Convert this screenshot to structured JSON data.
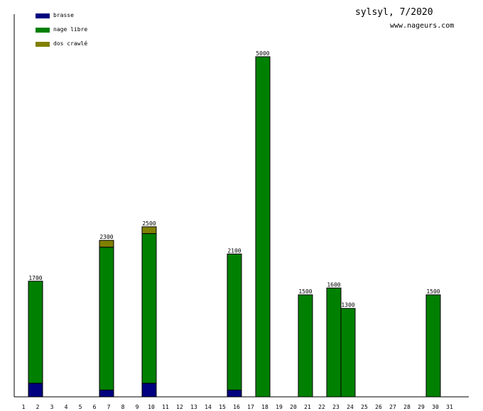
{
  "chart_data": {
    "type": "bar",
    "stacked": true,
    "title": "sylsyl, 7/2020",
    "subtitle": "www.nageurs.com",
    "xlabel": "",
    "ylabel": "",
    "ylim": [
      0,
      5000
    ],
    "grid": false,
    "legend_position": "top-left",
    "categories": [
      "1",
      "2",
      "3",
      "4",
      "5",
      "6",
      "7",
      "8",
      "9",
      "10",
      "11",
      "12",
      "13",
      "14",
      "15",
      "16",
      "17",
      "18",
      "19",
      "20",
      "21",
      "22",
      "23",
      "24",
      "25",
      "26",
      "27",
      "28",
      "29",
      "30",
      "31"
    ],
    "series": [
      {
        "name": "brasse",
        "color": "#000080",
        "values": [
          0,
          200,
          0,
          0,
          0,
          0,
          100,
          0,
          0,
          200,
          0,
          0,
          0,
          0,
          0,
          100,
          0,
          0,
          0,
          0,
          0,
          0,
          0,
          0,
          0,
          0,
          0,
          0,
          0,
          0,
          0
        ]
      },
      {
        "name": "nage libre",
        "color": "#008000",
        "values": [
          0,
          1500,
          0,
          0,
          0,
          0,
          2100,
          0,
          0,
          2200,
          0,
          0,
          0,
          0,
          0,
          2000,
          0,
          5000,
          0,
          0,
          1500,
          0,
          1600,
          1300,
          0,
          0,
          0,
          0,
          0,
          1500,
          0
        ]
      },
      {
        "name": "dos crawlé",
        "color": "#808000",
        "values": [
          0,
          0,
          0,
          0,
          0,
          0,
          100,
          0,
          0,
          100,
          0,
          0,
          0,
          0,
          0,
          0,
          0,
          0,
          0,
          0,
          0,
          0,
          0,
          0,
          0,
          0,
          0,
          0,
          0,
          0,
          0
        ]
      }
    ],
    "totals": [
      null,
      "1700",
      null,
      null,
      null,
      null,
      "2300",
      null,
      null,
      "2500",
      null,
      null,
      null,
      null,
      null,
      "2100",
      null,
      "5000",
      null,
      null,
      "1500",
      null,
      "1600",
      "1300",
      null,
      null,
      null,
      null,
      null,
      "1500",
      null
    ]
  }
}
